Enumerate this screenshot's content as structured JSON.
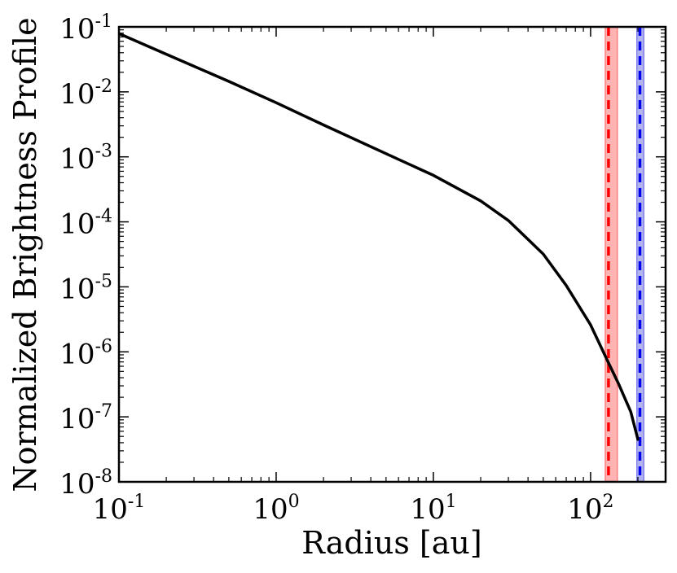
{
  "chart_data": {
    "type": "line",
    "xlabel": "Radius [au]",
    "ylabel": "Normalized Brightness Profile",
    "xscale": "log",
    "yscale": "log",
    "xlim": [
      0.1,
      300
    ],
    "ylim": [
      1e-08,
      0.1
    ],
    "grid": false,
    "x_ticks": [
      {
        "value": 0.1,
        "base": "10",
        "exp": "-1"
      },
      {
        "value": 1,
        "base": "10",
        "exp": "0"
      },
      {
        "value": 10,
        "base": "10",
        "exp": "1"
      },
      {
        "value": 100,
        "base": "10",
        "exp": "2"
      }
    ],
    "y_ticks": [
      {
        "value": 0.1,
        "base": "10",
        "exp": "-1"
      },
      {
        "value": 0.01,
        "base": "10",
        "exp": "-2"
      },
      {
        "value": 0.001,
        "base": "10",
        "exp": "-3"
      },
      {
        "value": 0.0001,
        "base": "10",
        "exp": "-4"
      },
      {
        "value": 1e-05,
        "base": "10",
        "exp": "-5"
      },
      {
        "value": 1e-06,
        "base": "10",
        "exp": "-6"
      },
      {
        "value": 1e-07,
        "base": "10",
        "exp": "-7"
      },
      {
        "value": 1e-08,
        "base": "10",
        "exp": "-8"
      }
    ],
    "series": [
      {
        "color": "#000000",
        "x": [
          0.1,
          0.2,
          0.5,
          1,
          2,
          5,
          10,
          20,
          30,
          50,
          70,
          100,
          130,
          150,
          180,
          200
        ],
        "y": [
          0.079,
          0.038,
          0.0145,
          0.0068,
          0.0031,
          0.00112,
          0.00052,
          0.00021,
          0.000105,
          3.2e-05,
          1.05e-05,
          2.6e-06,
          6.8e-07,
          3.3e-07,
          1.2e-07,
          4.5e-08
        ]
      }
    ],
    "vertical_markers": [
      {
        "x": 130,
        "band": [
          124,
          148
        ],
        "line_color": "#ff0000",
        "band_color": "#ffb3b3",
        "band_edge_color": "#ff8080",
        "style": "dashed"
      },
      {
        "x": 206,
        "band": [
          197,
          218
        ],
        "line_color": "#0000ee",
        "band_color": "#b3b3ee",
        "band_edge_color": "#8080ee",
        "style": "dashed"
      }
    ]
  }
}
